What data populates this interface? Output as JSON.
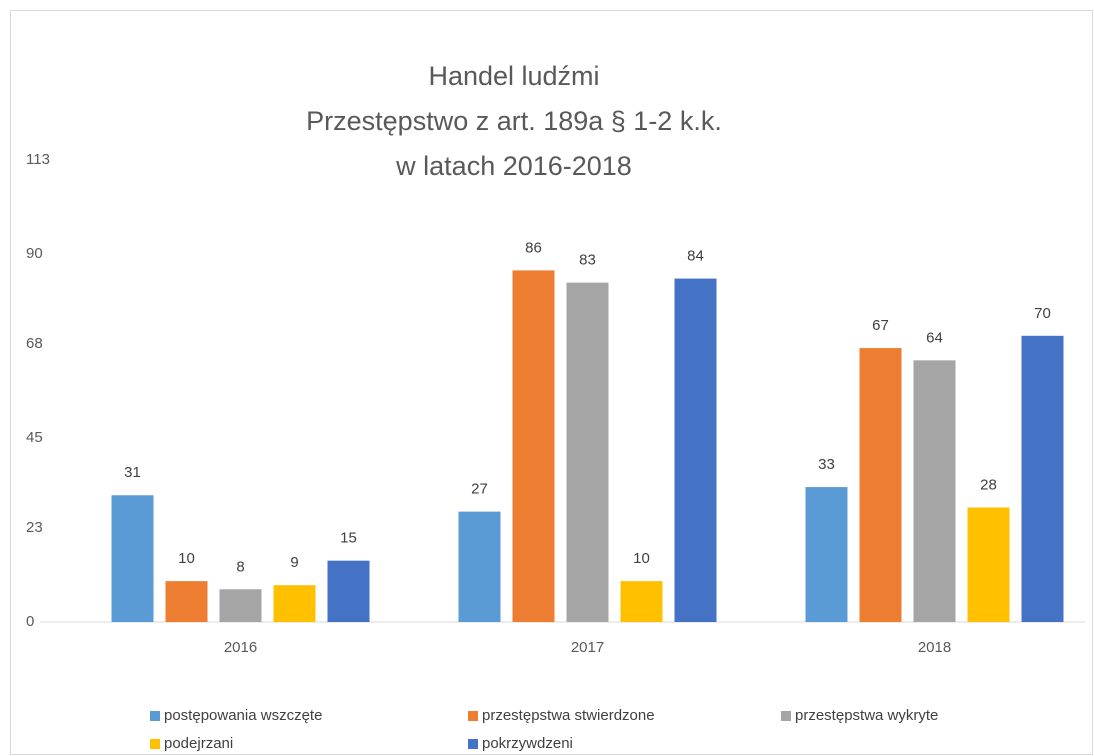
{
  "chart_data": {
    "type": "bar",
    "title": [
      "Handel ludźmi",
      "Przestępstwo z art. 189a § 1-2 k.k.",
      "w latach 2016-2018"
    ],
    "categories": [
      "2016",
      "2017",
      "2018"
    ],
    "series": [
      {
        "name": "postępowania wszczęte",
        "color": "#5b9bd5",
        "values": [
          31,
          27,
          33
        ]
      },
      {
        "name": "przestępstwa stwierdzone",
        "color": "#ed7d31",
        "values": [
          10,
          86,
          67
        ]
      },
      {
        "name": "przestępstwa wykryte",
        "color": "#a5a5a5",
        "values": [
          8,
          83,
          64
        ]
      },
      {
        "name": "podejrzani",
        "color": "#ffc000",
        "values": [
          9,
          10,
          28
        ]
      },
      {
        "name": "pokrzywdzeni",
        "color": "#4472c4",
        "values": [
          15,
          84,
          70
        ]
      }
    ],
    "ylim": [
      0,
      113
    ],
    "yticks": [
      0,
      23,
      45,
      68,
      90,
      113
    ],
    "grid": false,
    "legend": "bottom"
  }
}
